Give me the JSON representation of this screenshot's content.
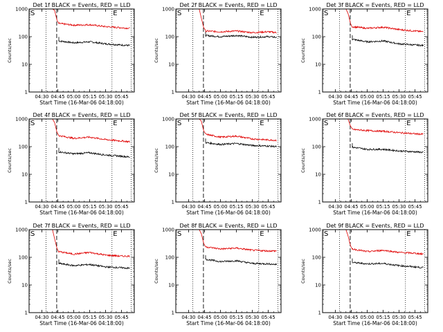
{
  "figure": {
    "panels": [
      {
        "title": "Det 1f BLACK = Events, RED = LLD"
      },
      {
        "title": "Det 2f BLACK = Events, RED = LLD"
      },
      {
        "title": "Det 3f BLACK = Events, RED = LLD"
      },
      {
        "title": "Det 4f BLACK = Events, RED = LLD"
      },
      {
        "title": "Det 5f BLACK = Events, RED = LLD"
      },
      {
        "title": "Det 6f BLACK = Events, RED = LLD"
      },
      {
        "title": "Det 7f BLACK = Events, RED = LLD"
      },
      {
        "title": "Det 8f BLACK = Events, RED = LLD"
      },
      {
        "title": "Det 9f BLACK = Events, RED = LLD"
      }
    ],
    "xlabel": "Start Time (16-Mar-06 04:18:00)",
    "ylabel": "Counts/sec",
    "start_marker": "S",
    "end_marker": "E",
    "xtick_labels": [
      "04:30",
      "04:45",
      "05:00",
      "05:15",
      "05:30",
      "05:45"
    ],
    "ytick_labels": [
      "1",
      "10",
      "100",
      "1000"
    ],
    "colors": {
      "events": "#000000",
      "lld": "#e00000",
      "axes": "#000000"
    }
  },
  "chart_data": [
    {
      "type": "line",
      "title": "Det 1f BLACK = Events, RED = LLD",
      "xlabel": "Start Time (16-Mar-06 04:18:00)",
      "ylabel": "Counts/sec",
      "yscale": "log",
      "ylim": [
        1,
        1000
      ],
      "xlim": [
        "04:18",
        "05:57"
      ],
      "x": [
        "04:46",
        "05:00",
        "05:15",
        "05:30",
        "05:45",
        "05:53"
      ],
      "series": [
        {
          "name": "Events",
          "color": "#000000",
          "values": [
            70,
            60,
            65,
            55,
            50,
            48
          ]
        },
        {
          "name": "LLD",
          "color": "#e00000",
          "values": [
            300,
            260,
            270,
            230,
            210,
            200
          ]
        }
      ]
    },
    {
      "type": "line",
      "title": "Det 2f BLACK = Events, RED = LLD",
      "xlabel": "Start Time (16-Mar-06 04:18:00)",
      "ylabel": "Counts/sec",
      "yscale": "log",
      "ylim": [
        1,
        1000
      ],
      "xlim": [
        "04:18",
        "05:57"
      ],
      "x": [
        "04:46",
        "05:00",
        "05:15",
        "05:30",
        "05:45",
        "05:53"
      ],
      "series": [
        {
          "name": "Events",
          "color": "#000000",
          "values": [
            110,
            100,
            110,
            95,
            100,
            95
          ]
        },
        {
          "name": "LLD",
          "color": "#e00000",
          "values": [
            160,
            150,
            160,
            140,
            150,
            140
          ]
        }
      ]
    },
    {
      "type": "line",
      "title": "Det 3f BLACK = Events, RED = LLD",
      "xlabel": "Start Time (16-Mar-06 04:18:00)",
      "ylabel": "Counts/sec",
      "yscale": "log",
      "ylim": [
        1,
        1000
      ],
      "xlim": [
        "04:18",
        "05:57"
      ],
      "x": [
        "04:46",
        "05:00",
        "05:15",
        "05:30",
        "05:45",
        "05:53"
      ],
      "series": [
        {
          "name": "Events",
          "color": "#000000",
          "values": [
            80,
            65,
            70,
            55,
            50,
            48
          ]
        },
        {
          "name": "LLD",
          "color": "#e00000",
          "values": [
            230,
            200,
            220,
            180,
            160,
            150
          ]
        }
      ]
    },
    {
      "type": "line",
      "title": "Det 4f BLACK = Events, RED = LLD",
      "xlabel": "Start Time (16-Mar-06 04:18:00)",
      "ylabel": "Counts/sec",
      "yscale": "log",
      "ylim": [
        1,
        1000
      ],
      "xlim": [
        "04:18",
        "05:57"
      ],
      "x": [
        "04:46",
        "05:00",
        "05:15",
        "05:30",
        "05:45",
        "05:53"
      ],
      "series": [
        {
          "name": "Events",
          "color": "#000000",
          "values": [
            65,
            55,
            60,
            50,
            45,
            42
          ]
        },
        {
          "name": "LLD",
          "color": "#e00000",
          "values": [
            250,
            200,
            220,
            180,
            160,
            150
          ]
        }
      ]
    },
    {
      "type": "line",
      "title": "Det 5f BLACK = Events, RED = LLD",
      "xlabel": "Start Time (16-Mar-06 04:18:00)",
      "ylabel": "Counts/sec",
      "yscale": "log",
      "ylim": [
        1,
        1000
      ],
      "xlim": [
        "04:18",
        "05:57"
      ],
      "x": [
        "04:46",
        "05:00",
        "05:15",
        "05:30",
        "05:45",
        "05:53"
      ],
      "series": [
        {
          "name": "Events",
          "color": "#000000",
          "values": [
            140,
            120,
            130,
            110,
            105,
            100
          ]
        },
        {
          "name": "LLD",
          "color": "#e00000",
          "values": [
            280,
            220,
            240,
            190,
            175,
            170
          ]
        }
      ]
    },
    {
      "type": "line",
      "title": "Det 6f BLACK = Events, RED = LLD",
      "xlabel": "Start Time (16-Mar-06 04:18:00)",
      "ylabel": "Counts/sec",
      "yscale": "log",
      "ylim": [
        1,
        1000
      ],
      "xlim": [
        "04:18",
        "05:57"
      ],
      "x": [
        "04:46",
        "05:00",
        "05:15",
        "05:30",
        "05:45",
        "05:53"
      ],
      "series": [
        {
          "name": "Events",
          "color": "#000000",
          "values": [
            95,
            80,
            80,
            70,
            65,
            62
          ]
        },
        {
          "name": "LLD",
          "color": "#e00000",
          "values": [
            420,
            380,
            360,
            320,
            290,
            280
          ]
        }
      ]
    },
    {
      "type": "line",
      "title": "Det 7f BLACK = Events, RED = LLD",
      "xlabel": "Start Time (16-Mar-06 04:18:00)",
      "ylabel": "Counts/sec",
      "yscale": "log",
      "ylim": [
        1,
        1000
      ],
      "xlim": [
        "04:18",
        "05:57"
      ],
      "x": [
        "04:46",
        "05:00",
        "05:15",
        "05:30",
        "05:45",
        "05:53"
      ],
      "series": [
        {
          "name": "Events",
          "color": "#000000",
          "values": [
            60,
            50,
            55,
            45,
            42,
            40
          ]
        },
        {
          "name": "LLD",
          "color": "#e00000",
          "values": [
            160,
            130,
            150,
            120,
            110,
            110
          ]
        }
      ]
    },
    {
      "type": "line",
      "title": "Det 8f BLACK = Events, RED = LLD",
      "xlabel": "Start Time (16-Mar-06 04:18:00)",
      "ylabel": "Counts/sec",
      "yscale": "log",
      "ylim": [
        1,
        1000
      ],
      "xlim": [
        "04:18",
        "05:57"
      ],
      "x": [
        "04:46",
        "05:00",
        "05:15",
        "05:30",
        "05:45",
        "05:53"
      ],
      "series": [
        {
          "name": "Events",
          "color": "#000000",
          "values": [
            85,
            70,
            75,
            60,
            58,
            55
          ]
        },
        {
          "name": "LLD",
          "color": "#e00000",
          "values": [
            240,
            200,
            215,
            180,
            170,
            170
          ]
        }
      ]
    },
    {
      "type": "line",
      "title": "Det 9f BLACK = Events, RED = LLD",
      "xlabel": "Start Time (16-Mar-06 04:18:00)",
      "ylabel": "Counts/sec",
      "yscale": "log",
      "ylim": [
        1,
        1000
      ],
      "xlim": [
        "04:18",
        "05:57"
      ],
      "x": [
        "04:46",
        "05:00",
        "05:15",
        "05:30",
        "05:45",
        "05:53"
      ],
      "series": [
        {
          "name": "Events",
          "color": "#000000",
          "values": [
            65,
            58,
            60,
            50,
            45,
            42
          ]
        },
        {
          "name": "LLD",
          "color": "#e00000",
          "values": [
            200,
            160,
            180,
            150,
            140,
            130
          ]
        }
      ]
    }
  ]
}
